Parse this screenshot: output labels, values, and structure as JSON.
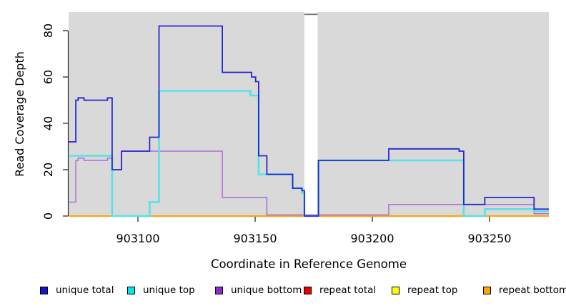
{
  "figure": {
    "xlabel": "Coordinate in Reference Genome",
    "ylabel": "Read Coverage Depth"
  },
  "chart_data": {
    "type": "line",
    "subtype": "step-coverage-plot",
    "title": "",
    "xlabel": "Coordinate in Reference Genome",
    "ylabel": "Read Coverage Depth",
    "x_ticks": [
      903100,
      903150,
      903200,
      903250
    ],
    "y_ticks": [
      0,
      20,
      40,
      60,
      80
    ],
    "xlim": [
      903070.4,
      903275.3
    ],
    "ylim": [
      0,
      88
    ],
    "grid": false,
    "legend_position": "bottom",
    "plot_bg_color": "#d9d9d9",
    "gap_region": {
      "x_start": 903171,
      "x_end": 903176.7,
      "fill": "#ffffff",
      "cap_color": "#7d7d7d"
    },
    "series": [
      {
        "name": "repeat top",
        "color": "#ffff00",
        "points": [
          [
            903070.4,
            0
          ],
          [
            903275.3,
            0
          ]
        ]
      },
      {
        "name": "repeat total",
        "color": "#dd0000",
        "points": [
          [
            903070.4,
            0
          ],
          [
            903275.3,
            0
          ]
        ]
      },
      {
        "name": "repeat bottom",
        "color": "#ffa500",
        "points": [
          [
            903070.4,
            0
          ],
          [
            903275.3,
            0
          ]
        ]
      },
      {
        "name": "unique bottom",
        "color": "#b06cd8",
        "points": [
          [
            903070.4,
            6
          ],
          [
            903073.5,
            6
          ],
          [
            903073.5,
            24
          ],
          [
            903074.5,
            24
          ],
          [
            903074.5,
            25
          ],
          [
            903077,
            25
          ],
          [
            903077,
            24
          ],
          [
            903087,
            24
          ],
          [
            903087,
            25
          ],
          [
            903089,
            25
          ],
          [
            903089,
            20
          ],
          [
            903093,
            20
          ],
          [
            903093,
            28
          ],
          [
            903136,
            28
          ],
          [
            903136,
            8
          ],
          [
            903155,
            8
          ],
          [
            903155,
            0.5
          ],
          [
            903207,
            0.5
          ],
          [
            903207,
            5
          ],
          [
            903269,
            5
          ],
          [
            903269,
            1
          ],
          [
            903275.3,
            1
          ]
        ]
      },
      {
        "name": "unique top",
        "color": "#55e2ea",
        "points": [
          [
            903070.4,
            26
          ],
          [
            903089,
            26
          ],
          [
            903089,
            0
          ],
          [
            903105,
            0
          ],
          [
            903105,
            6
          ],
          [
            903109,
            6
          ],
          [
            903109,
            54
          ],
          [
            903148,
            54
          ],
          [
            903148,
            52
          ],
          [
            903151.5,
            52
          ],
          [
            903151.5,
            18
          ],
          [
            903166,
            18
          ],
          [
            903166,
            12
          ],
          [
            903170,
            12
          ],
          [
            903170,
            10
          ],
          [
            903171,
            10
          ],
          [
            903171,
            0
          ],
          [
            903177,
            0
          ],
          [
            903177,
            24
          ],
          [
            903239,
            24
          ],
          [
            903239,
            0
          ],
          [
            903248,
            0
          ],
          [
            903248,
            3
          ],
          [
            903269,
            3
          ],
          [
            903269,
            2
          ],
          [
            903275.3,
            2
          ]
        ]
      },
      {
        "name": "unique total",
        "color": "#2727cd",
        "points": [
          [
            903070.4,
            32
          ],
          [
            903073.5,
            32
          ],
          [
            903073.5,
            50
          ],
          [
            903074.5,
            50
          ],
          [
            903074.5,
            51
          ],
          [
            903077,
            51
          ],
          [
            903077,
            50
          ],
          [
            903087,
            50
          ],
          [
            903087,
            51
          ],
          [
            903089,
            51
          ],
          [
            903089,
            20
          ],
          [
            903093,
            20
          ],
          [
            903093,
            28
          ],
          [
            903105,
            28
          ],
          [
            903105,
            34
          ],
          [
            903109,
            34
          ],
          [
            903109,
            82
          ],
          [
            903136,
            82
          ],
          [
            903136,
            62
          ],
          [
            903148.5,
            62
          ],
          [
            903148.5,
            60
          ],
          [
            903150.2,
            60
          ],
          [
            903150.2,
            58
          ],
          [
            903151.5,
            58
          ],
          [
            903151.5,
            26
          ],
          [
            903155,
            26
          ],
          [
            903155,
            18
          ],
          [
            903166,
            18
          ],
          [
            903166,
            12
          ],
          [
            903170,
            12
          ],
          [
            903170,
            11
          ],
          [
            903171,
            11
          ],
          [
            903171,
            0
          ],
          [
            903177,
            0
          ],
          [
            903177,
            24
          ],
          [
            903207,
            24
          ],
          [
            903207,
            29
          ],
          [
            903237,
            29
          ],
          [
            903237,
            28
          ],
          [
            903239,
            28
          ],
          [
            903239,
            5
          ],
          [
            903248,
            5
          ],
          [
            903248,
            8
          ],
          [
            903269,
            8
          ],
          [
            903269,
            3
          ],
          [
            903275.3,
            3
          ]
        ]
      }
    ],
    "legend": [
      {
        "label": "unique total",
        "color": "#1414cc"
      },
      {
        "label": "unique top",
        "color": "#00e5ee"
      },
      {
        "label": "unique bottom",
        "color": "#9327d8"
      },
      {
        "label": "repeat total",
        "color": "#e80000"
      },
      {
        "label": "repeat top",
        "color": "#ffff00"
      },
      {
        "label": "repeat bottom",
        "color": "#ffa500"
      }
    ]
  }
}
